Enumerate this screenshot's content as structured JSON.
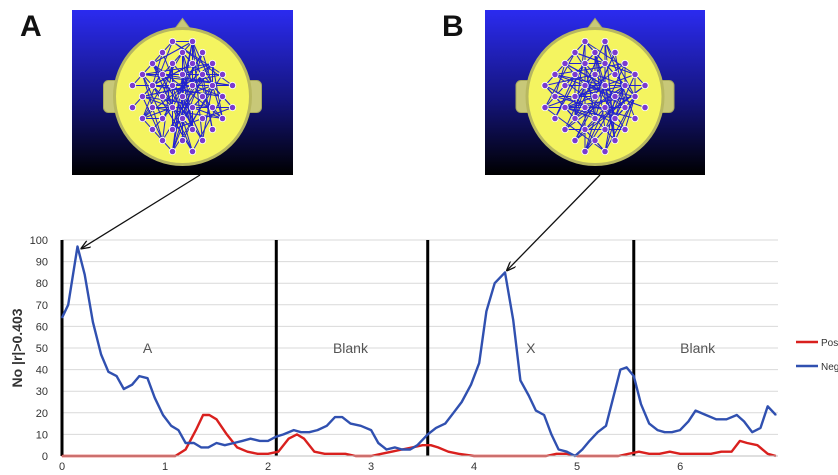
{
  "panels": [
    {
      "letter": "A"
    },
    {
      "letter": "B"
    }
  ],
  "chart_data": {
    "type": "line",
    "ylabel": "No |r|>0.403",
    "xlabel": "",
    "xlim": [
      0,
      6.95
    ],
    "ylim": [
      0,
      100
    ],
    "y_ticks": [
      0,
      10,
      20,
      30,
      40,
      50,
      60,
      70,
      80,
      90,
      100
    ],
    "x_ticks": [
      0,
      1,
      2,
      3,
      4,
      5,
      6
    ],
    "grid": "horizontal",
    "legend_position": "right",
    "separators": [
      2.08,
      3.55,
      5.55
    ],
    "segments": [
      {
        "label": "A",
        "x": 0.83
      },
      {
        "label": "Blank",
        "x": 2.8
      },
      {
        "label": "X",
        "x": 4.55
      },
      {
        "label": "Blank",
        "x": 6.17
      }
    ],
    "series": [
      {
        "name": "Pos",
        "color": "#d9201e",
        "x": [
          0,
          0.1,
          0.2,
          0.3,
          0.4,
          0.5,
          0.6,
          0.7,
          0.8,
          0.9,
          1.0,
          1.1,
          1.2,
          1.3,
          1.37,
          1.43,
          1.5,
          1.6,
          1.7,
          1.8,
          1.9,
          2.0,
          2.1,
          2.2,
          2.28,
          2.35,
          2.45,
          2.55,
          2.65,
          2.75,
          2.85,
          3.0,
          3.1,
          3.2,
          3.3,
          3.4,
          3.5,
          3.58,
          3.65,
          3.75,
          3.85,
          4.0,
          4.1,
          4.2,
          4.3,
          4.4,
          4.5,
          4.6,
          4.7,
          4.8,
          4.9,
          5.0,
          5.1,
          5.2,
          5.3,
          5.4,
          5.5,
          5.6,
          5.7,
          5.8,
          5.9,
          6.0,
          6.1,
          6.2,
          6.3,
          6.4,
          6.5,
          6.58,
          6.65,
          6.75,
          6.85,
          6.93
        ],
        "y": [
          0,
          0,
          0,
          0,
          0,
          0,
          0,
          0,
          0,
          0,
          0,
          0,
          3,
          12,
          19,
          19,
          17,
          10,
          4,
          2,
          1,
          1,
          2,
          8,
          10,
          8,
          2,
          1,
          1,
          1,
          0,
          0,
          1,
          2,
          3,
          4,
          5,
          5,
          4,
          2,
          1,
          0,
          0,
          0,
          0,
          0,
          0,
          0,
          0,
          1,
          1,
          0,
          0,
          0,
          0,
          0,
          1,
          2,
          1,
          1,
          2,
          1,
          1,
          1,
          1,
          2,
          2,
          7,
          6,
          5,
          1,
          0
        ]
      },
      {
        "name": "Neg",
        "color": "#3050b0",
        "x": [
          0,
          0.06,
          0.15,
          0.22,
          0.3,
          0.38,
          0.45,
          0.53,
          0.6,
          0.68,
          0.75,
          0.83,
          0.9,
          0.98,
          1.06,
          1.13,
          1.2,
          1.28,
          1.35,
          1.42,
          1.5,
          1.58,
          1.67,
          1.75,
          1.83,
          1.92,
          2.0,
          2.08,
          2.15,
          2.25,
          2.32,
          2.4,
          2.48,
          2.57,
          2.65,
          2.72,
          2.8,
          2.9,
          3.0,
          3.07,
          3.15,
          3.23,
          3.3,
          3.38,
          3.45,
          3.55,
          3.63,
          3.72,
          3.8,
          3.88,
          3.97,
          4.05,
          4.12,
          4.2,
          4.3,
          4.38,
          4.45,
          4.53,
          4.6,
          4.68,
          4.75,
          4.82,
          4.9,
          4.98,
          5.05,
          5.12,
          5.2,
          5.28,
          5.35,
          5.42,
          5.48,
          5.55,
          5.62,
          5.7,
          5.78,
          5.85,
          5.92,
          6.0,
          6.08,
          6.15,
          6.25,
          6.35,
          6.45,
          6.55,
          6.62,
          6.7,
          6.78,
          6.85,
          6.93
        ],
        "y": [
          64,
          70,
          97,
          84,
          62,
          47,
          39,
          37,
          31,
          33,
          37,
          36,
          27,
          19,
          14,
          12,
          6,
          6,
          4,
          4,
          6,
          5,
          6,
          7,
          8,
          7,
          7,
          9,
          10,
          12,
          11,
          11,
          12,
          14,
          18,
          18,
          15,
          14,
          12,
          6,
          3,
          4,
          3,
          3,
          5,
          10,
          13,
          15,
          20,
          25,
          33,
          43,
          67,
          80,
          85,
          63,
          35,
          28,
          21,
          19,
          10,
          3,
          2,
          0,
          3,
          7,
          11,
          14,
          27,
          40,
          41,
          37,
          24,
          15,
          12,
          11,
          11,
          12,
          16,
          21,
          19,
          17,
          17,
          19,
          16,
          11,
          13,
          23,
          19
        ]
      }
    ]
  }
}
